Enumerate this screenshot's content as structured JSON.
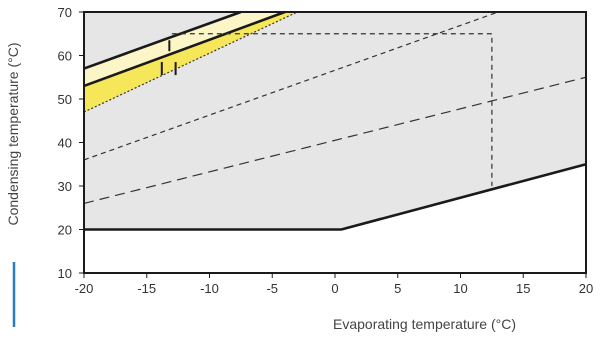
{
  "chart_data": {
    "type": "line",
    "title": "",
    "xlabel": "Evaporating temperature (°C)",
    "ylabel": "Condensing temperature (°C)",
    "xlim": [
      -20,
      20
    ],
    "ylim": [
      10,
      70
    ],
    "x_ticks": [
      -20,
      -15,
      -10,
      -5,
      0,
      5,
      10,
      15,
      20
    ],
    "y_ticks": [
      10,
      20,
      30,
      40,
      50,
      60,
      70
    ],
    "grid": false,
    "background_zone_color": "#e6e6e6",
    "highlight_zone_color": "#f5e65a",
    "light_zone_color": "#fbf5c8",
    "axis_accent_color": "#2b7bbf",
    "series": [
      {
        "style": "solid-thick",
        "points": [
          [
            -20,
            20
          ],
          [
            0.5,
            20
          ],
          [
            20,
            35
          ]
        ]
      },
      {
        "style": "solid-thick",
        "points": [
          [
            -20,
            57
          ],
          [
            -7.5,
            70
          ]
        ]
      },
      {
        "style": "solid-thick",
        "points": [
          [
            -20,
            53
          ],
          [
            -4,
            70
          ]
        ]
      },
      {
        "style": "dotted",
        "points": [
          [
            -20,
            47
          ],
          [
            -3,
            70
          ]
        ]
      },
      {
        "style": "short-dash",
        "points": [
          [
            -20,
            36
          ],
          [
            13,
            70
          ]
        ]
      },
      {
        "style": "long-dash",
        "points": [
          [
            -20,
            26
          ],
          [
            20,
            55
          ]
        ]
      },
      {
        "style": "short-dash",
        "points": [
          [
            -13,
            65
          ],
          [
            12.5,
            65
          ],
          [
            12.5,
            30
          ]
        ]
      },
      {
        "style": "marker",
        "points": [
          [
            -13.2,
            61
          ],
          [
            -13.2,
            63.5
          ]
        ]
      },
      {
        "style": "marker",
        "points": [
          [
            -13.8,
            55.5
          ],
          [
            -13.8,
            58.5
          ]
        ]
      },
      {
        "style": "marker",
        "points": [
          [
            -12.7,
            55.5
          ],
          [
            -12.7,
            58.5
          ]
        ]
      }
    ],
    "zones": [
      {
        "name": "envelope",
        "fill": "background",
        "points": [
          [
            -20,
            20
          ],
          [
            0.5,
            20
          ],
          [
            20,
            35
          ],
          [
            20,
            70
          ],
          [
            -20,
            70
          ]
        ]
      },
      {
        "name": "light-band",
        "fill": "light",
        "points": [
          [
            -20,
            57
          ],
          [
            -7.5,
            70
          ],
          [
            -4,
            70
          ],
          [
            -20,
            53
          ]
        ]
      },
      {
        "name": "yellow-band",
        "fill": "highlight",
        "points": [
          [
            -20,
            53
          ],
          [
            -4,
            70
          ],
          [
            -3,
            70
          ],
          [
            -20,
            47
          ]
        ]
      }
    ]
  }
}
